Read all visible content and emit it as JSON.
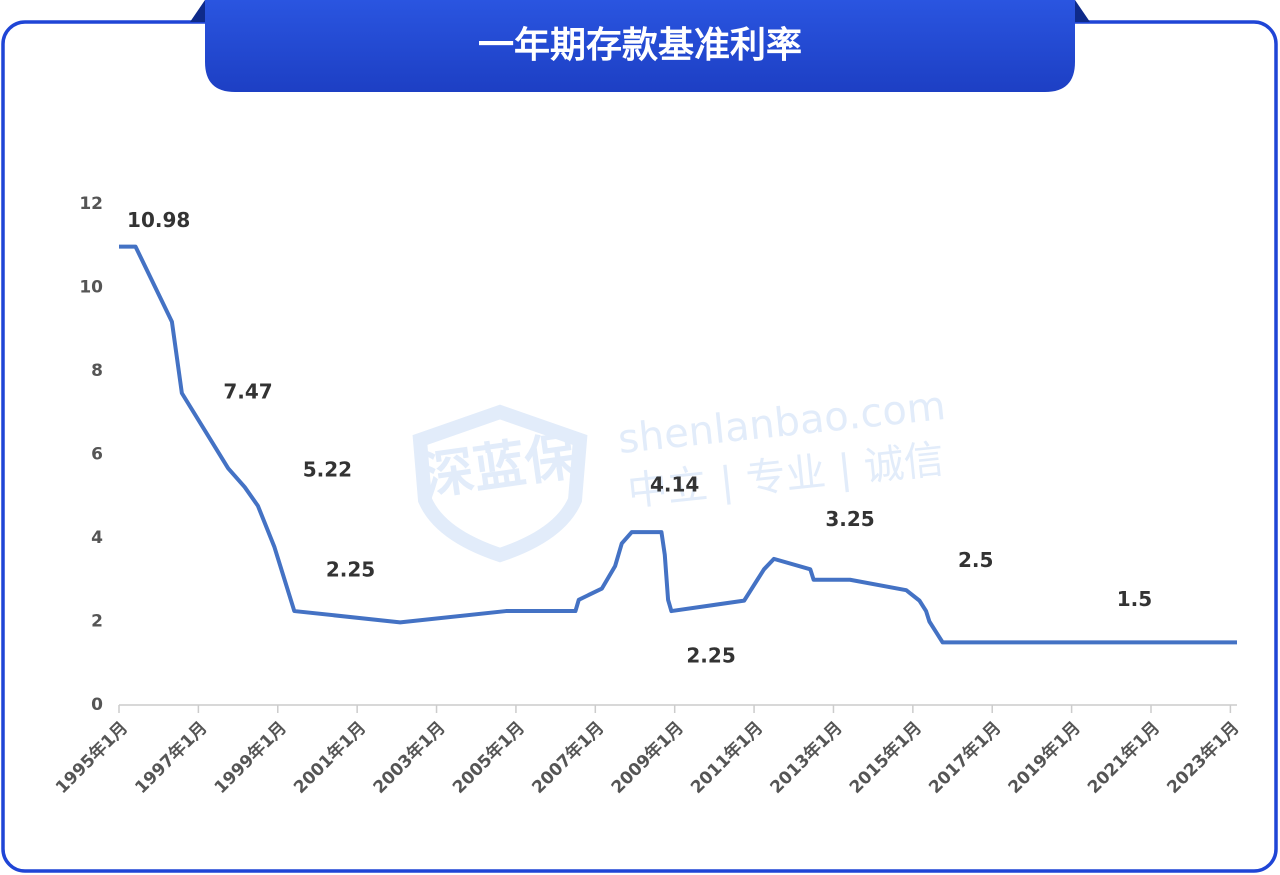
{
  "chart_data": {
    "type": "line",
    "title": "一年期存款基准利率",
    "watermark": {
      "logo": "深蓝保",
      "site": "shenlanbao.com",
      "motto": "中立 | 专业 | 诚信"
    },
    "x": [
      "1995-01",
      "1995-06",
      "1996-05",
      "1996-08",
      "1997-10",
      "1998-03",
      "1998-07",
      "1998-12",
      "1999-06",
      "2002-02",
      "2004-10",
      "2006-07",
      "2006-08",
      "2007-03",
      "2007-05",
      "2007-07",
      "2007-08",
      "2007-09",
      "2007-12",
      "2008-09",
      "2008-10",
      "2008-11",
      "2008-12",
      "2010-10",
      "2010-12",
      "2011-02",
      "2011-04",
      "2011-07",
      "2012-06",
      "2012-07",
      "2013-06",
      "2014-11",
      "2015-03",
      "2015-05",
      "2015-06",
      "2015-08",
      "2015-10",
      "2023-03"
    ],
    "series": [
      {
        "name": "一年期存款基准利率",
        "color": "#4472c4",
        "values": [
          10.98,
          10.98,
          9.18,
          7.47,
          5.67,
          5.22,
          4.77,
          3.78,
          2.25,
          1.98,
          2.25,
          2.25,
          2.52,
          2.79,
          3.06,
          3.33,
          3.6,
          3.87,
          4.14,
          4.14,
          3.6,
          2.52,
          2.25,
          2.5,
          2.75,
          3.0,
          3.25,
          3.5,
          3.25,
          3.0,
          3.0,
          2.75,
          2.5,
          2.25,
          2.0,
          1.75,
          1.5,
          1.5
        ]
      }
    ],
    "annotations": [
      {
        "x": "1996-01",
        "value": 10.98
      },
      {
        "x": "1998-04",
        "value": 7.47
      },
      {
        "x": "2000-04",
        "value": 5.22
      },
      {
        "x": "2000-11",
        "value": 2.25
      },
      {
        "x": "2009-01",
        "value": 4.14
      },
      {
        "x": "2009-12",
        "value": 2.25
      },
      {
        "x": "2013-06",
        "value": 3.25
      },
      {
        "x": "2016-08",
        "value": 2.5
      },
      {
        "x": "2020-08",
        "value": 1.5
      }
    ],
    "xlim": [
      "1995-01",
      "2023-03"
    ],
    "xticks": [
      {
        "value": "1995-01",
        "label": "1995年1月"
      },
      {
        "value": "1997-01",
        "label": "1997年1月"
      },
      {
        "value": "1999-01",
        "label": "1999年1月"
      },
      {
        "value": "2001-01",
        "label": "2001年1月"
      },
      {
        "value": "2003-01",
        "label": "2003年1月"
      },
      {
        "value": "2005-01",
        "label": "2005年1月"
      },
      {
        "value": "2007-01",
        "label": "2007年1月"
      },
      {
        "value": "2009-01",
        "label": "2009年1月"
      },
      {
        "value": "2011-01",
        "label": "2011年1月"
      },
      {
        "value": "2013-01",
        "label": "2013年1月"
      },
      {
        "value": "2015-01",
        "label": "2015年1月"
      },
      {
        "value": "2017-01",
        "label": "2017年1月"
      },
      {
        "value": "2019-01",
        "label": "2019年1月"
      },
      {
        "value": "2021-01",
        "label": "2021年1月"
      },
      {
        "value": "2023-01",
        "label": "2023年1月"
      }
    ],
    "ylim": [
      0,
      12
    ],
    "yticks": [
      0,
      2,
      4,
      6,
      8,
      10,
      12
    ],
    "grid": false
  }
}
